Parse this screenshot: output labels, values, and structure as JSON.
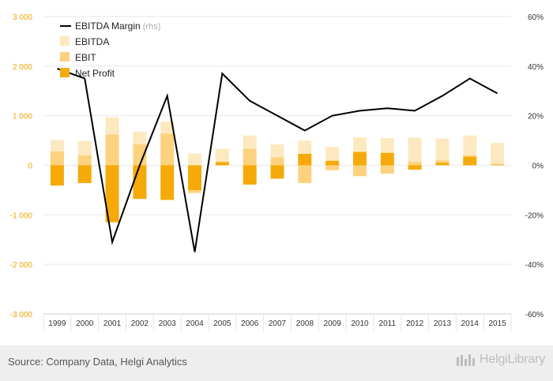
{
  "chart_data": {
    "type": "bar",
    "categories": [
      "1999",
      "2000",
      "2001",
      "2002",
      "2003",
      "2004",
      "2005",
      "2006",
      "2007",
      "2008",
      "2009",
      "2010",
      "2011",
      "2012",
      "2013",
      "2014",
      "2015"
    ],
    "y_left": {
      "ylim": [
        -3000,
        3000
      ],
      "ticks": [
        "3 000",
        "2 000",
        "1 000",
        "0",
        "-1 000",
        "-2 000",
        "-3 000"
      ]
    },
    "y_right": {
      "ylim": [
        -60,
        60
      ],
      "ticks": [
        "60%",
        "40%",
        "20%",
        "0%",
        "-20%",
        "-40%",
        "-60%"
      ]
    },
    "grid": true,
    "legend_position": "top-left",
    "series": [
      {
        "name": "EBITDA Margin",
        "name_suffix": "(rhs)",
        "kind": "line",
        "axis": "right",
        "color": "#000000",
        "values": [
          39,
          35,
          -31,
          0,
          28,
          -35,
          37,
          26,
          20,
          14,
          20,
          22,
          23,
          22,
          28,
          35,
          29
        ]
      },
      {
        "name": "EBITDA",
        "kind": "bar",
        "axis": "left",
        "color": "#fde9c0",
        "values": [
          510,
          490,
          970,
          680,
          880,
          240,
          330,
          600,
          420,
          500,
          370,
          560,
          550,
          560,
          540,
          600,
          450
        ]
      },
      {
        "name": "EBIT",
        "kind": "bar",
        "axis": "left",
        "color": "#fdd27f",
        "values": [
          280,
          200,
          620,
          420,
          640,
          -560,
          80,
          330,
          160,
          -360,
          -100,
          -220,
          -170,
          70,
          100,
          200,
          30
        ]
      },
      {
        "name": "Net Profit",
        "kind": "bar",
        "axis": "left",
        "color": "#f5aa0a",
        "values": [
          -410,
          -360,
          -1150,
          -680,
          -700,
          -500,
          60,
          -390,
          -270,
          230,
          90,
          270,
          250,
          -90,
          50,
          170,
          10
        ]
      }
    ]
  },
  "footer": {
    "source": "Source: Company Data, Helgi Analytics",
    "logo_text": "HelgiLibrary"
  },
  "colors": {
    "left_axis": "#f0a500",
    "grid": "#e6e6e6",
    "footer_bg": "#eeeeee"
  }
}
